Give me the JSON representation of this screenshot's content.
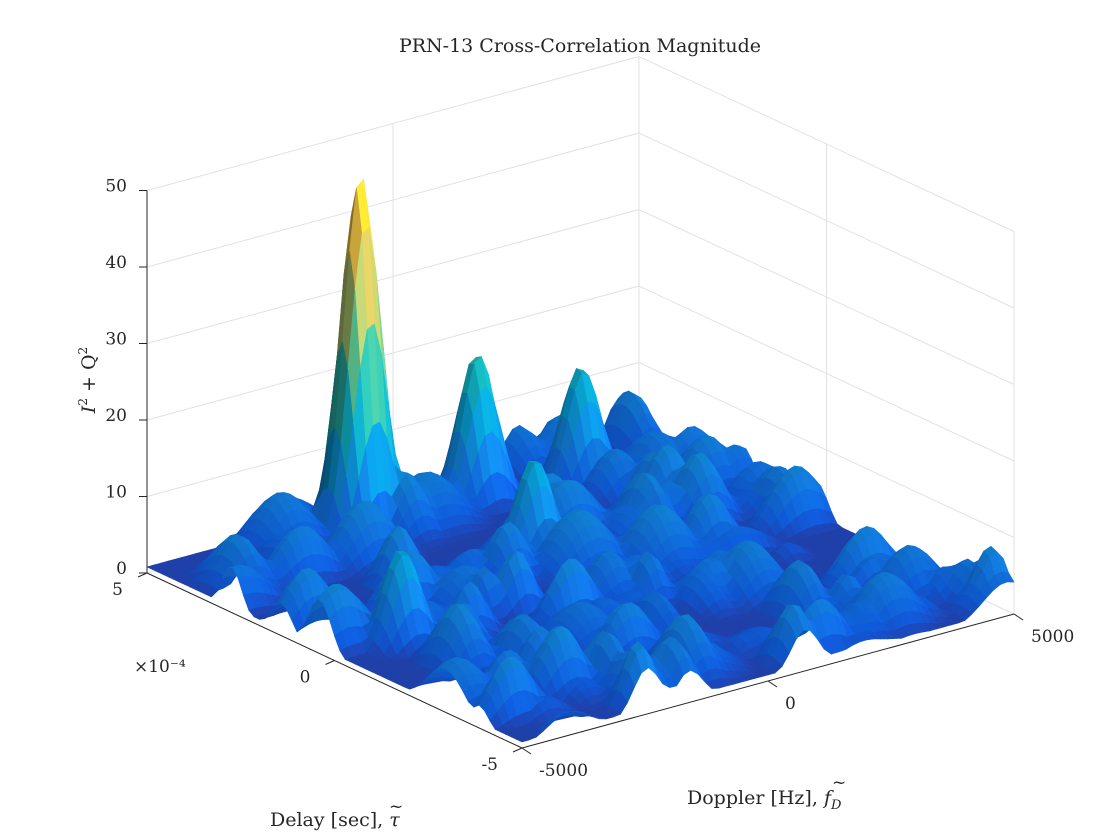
{
  "chart_data": {
    "type": "surface3d",
    "title": "PRN-13 Cross-Correlation Magnitude",
    "zlabel": "I² + Q²",
    "xlabel": "Doppler [Hz], f̃_D",
    "ylabel": "Delay [sec], τ̃",
    "xlim": [
      -5000,
      5000
    ],
    "ylim": [
      -0.0005,
      0.0005
    ],
    "zlim": [
      0,
      50
    ],
    "x_ticks": [
      -5000,
      0,
      5000
    ],
    "x_tick_labels": [
      "-5000",
      "0",
      "5000"
    ],
    "y_ticks": [
      -5,
      0,
      5
    ],
    "y_tick_labels": [
      "-5",
      "0",
      "5"
    ],
    "y_exponent_label": "×10⁻⁴",
    "z_ticks": [
      0,
      10,
      20,
      30,
      40,
      50
    ],
    "z_tick_labels": [
      "0",
      "10",
      "20",
      "30",
      "40",
      "50"
    ],
    "colormap": "parula",
    "noise_floor_range": [
      2,
      9
    ],
    "peaks": [
      {
        "doppler": -1200,
        "delay": 0.00043,
        "value": 47
      },
      {
        "doppler": 1100,
        "delay": 0.00042,
        "value": 20
      },
      {
        "doppler": 2900,
        "delay": 0.00038,
        "value": 16
      },
      {
        "doppler": -3800,
        "delay": -2e-05,
        "value": 13
      },
      {
        "doppler": 200,
        "delay": 0.00015,
        "value": 14
      }
    ]
  },
  "labels": {
    "title": "PRN-13 Cross-Correlation Magnitude",
    "zlabel_main": "I",
    "zlabel_mid": " + Q",
    "sup": "2",
    "xlabel_text": "Doppler [Hz], ",
    "xlabel_sym": "f",
    "xlabel_sub": "D",
    "ylabel_text": "Delay [sec], ",
    "ylabel_sym": "τ",
    "y_exponent": "×10⁻⁴"
  }
}
